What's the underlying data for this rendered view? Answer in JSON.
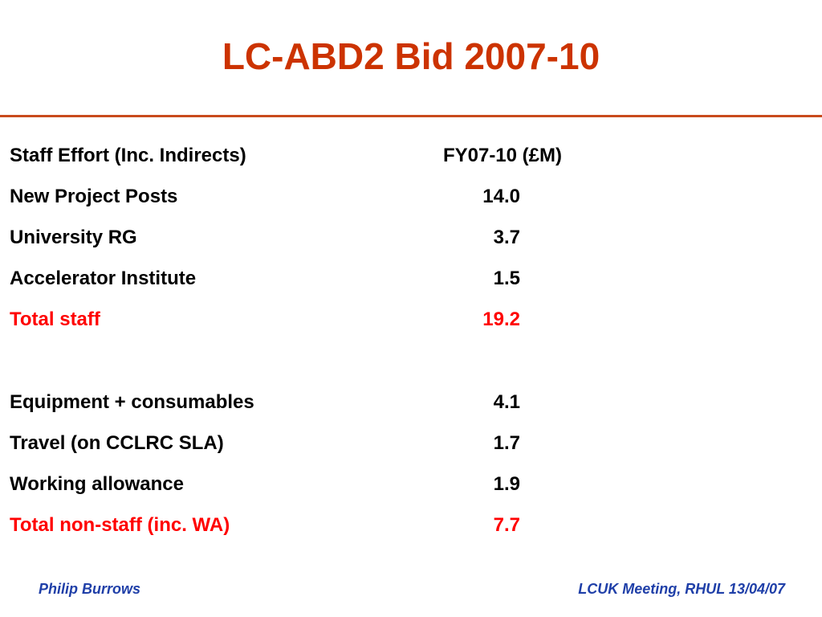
{
  "slide": {
    "title": "LC-ABD2 Bid 2007-10",
    "table": {
      "header": {
        "label": "Staff Effort (Inc. Indirects)",
        "value": "FY07-10 (£M)"
      },
      "rows": [
        {
          "label": "New Project Posts",
          "value": "14.0"
        },
        {
          "label": "University RG",
          "value": "3.7"
        },
        {
          "label": "Accelerator Institute",
          "value": "1.5"
        },
        {
          "label": "Total staff",
          "value": "19.2"
        },
        {
          "label": "Equipment + consumables",
          "value": "4.1"
        },
        {
          "label": "Travel (on CCLRC SLA)",
          "value": "1.7"
        },
        {
          "label": "Working allowance",
          "value": "1.9"
        },
        {
          "label": "Total non-staff  (inc. WA)",
          "value": "7.7"
        }
      ]
    },
    "footer": {
      "author": "Philip Burrows",
      "meeting": "LCUK Meeting, RHUL 13/04/07"
    },
    "colors": {
      "title": "#cc3300",
      "rule": "#c94a1c",
      "total": "#ff0000",
      "footer": "#1f3fa8"
    }
  }
}
